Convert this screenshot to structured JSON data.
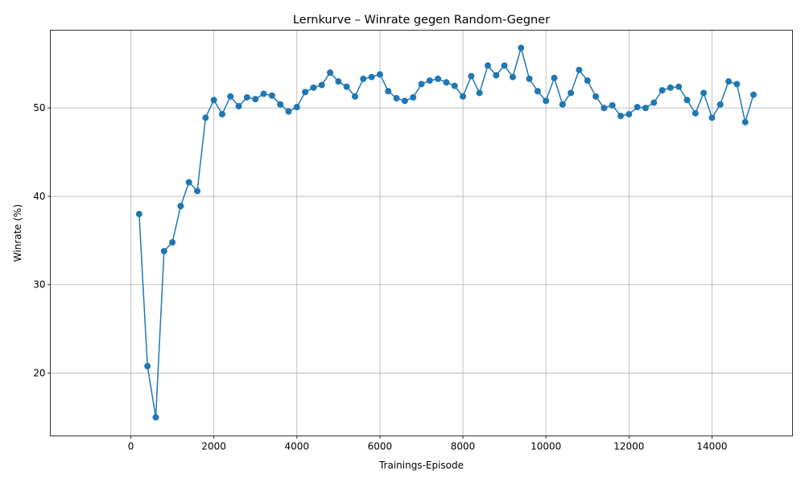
{
  "chart_data": {
    "type": "line",
    "title": "Lernkurve – Winrate gegen Random-Gegner",
    "xlabel": "Trainings-Episode",
    "ylabel": "Winrate (%)",
    "xlim": [
      -1940,
      15940
    ],
    "ylim": [
      12.9,
      58.8
    ],
    "xticks": [
      0,
      2000,
      4000,
      6000,
      8000,
      10000,
      12000,
      14000
    ],
    "yticks": [
      20,
      30,
      40,
      50
    ],
    "grid": true,
    "color": "#1f77b4",
    "series": [
      {
        "name": "",
        "x": [
          200,
          400,
          600,
          800,
          1000,
          1200,
          1400,
          1600,
          1800,
          2000,
          2200,
          2400,
          2600,
          2800,
          3000,
          3200,
          3400,
          3600,
          3800,
          4000,
          4200,
          4400,
          4600,
          4800,
          5000,
          5200,
          5400,
          5600,
          5800,
          6000,
          6200,
          6400,
          6600,
          6800,
          7000,
          7200,
          7400,
          7600,
          7800,
          8000,
          8200,
          8400,
          8600,
          8800,
          9000,
          9200,
          9400,
          9600,
          9800,
          10000,
          10200,
          10400,
          10600,
          10800,
          11000,
          11200,
          11400,
          11600,
          11800,
          12000,
          12200,
          12400,
          12600,
          12800,
          13000,
          13200,
          13400,
          13600,
          13800,
          14000,
          14200,
          14400,
          14600,
          14800,
          15000
        ],
        "y": [
          38.0,
          20.8,
          15.0,
          33.8,
          34.8,
          38.9,
          41.6,
          40.6,
          48.9,
          50.9,
          49.3,
          51.3,
          50.2,
          51.2,
          51.0,
          51.6,
          51.4,
          50.4,
          49.6,
          50.1,
          51.8,
          52.3,
          52.6,
          54.0,
          53.0,
          52.4,
          51.3,
          53.3,
          53.5,
          53.8,
          51.9,
          51.1,
          50.8,
          51.2,
          52.7,
          53.1,
          53.3,
          52.9,
          52.5,
          51.3,
          53.6,
          51.7,
          54.8,
          53.7,
          54.8,
          53.5,
          56.8,
          53.3,
          51.9,
          50.8,
          53.4,
          50.4,
          51.7,
          54.3,
          53.1,
          51.3,
          50.0,
          50.3,
          49.1,
          49.3,
          50.1,
          50.0,
          50.6,
          52.0,
          52.3,
          52.4,
          50.9,
          49.4,
          51.7,
          48.9,
          50.4,
          53.0,
          52.7,
          48.4,
          51.5
        ]
      }
    ]
  }
}
